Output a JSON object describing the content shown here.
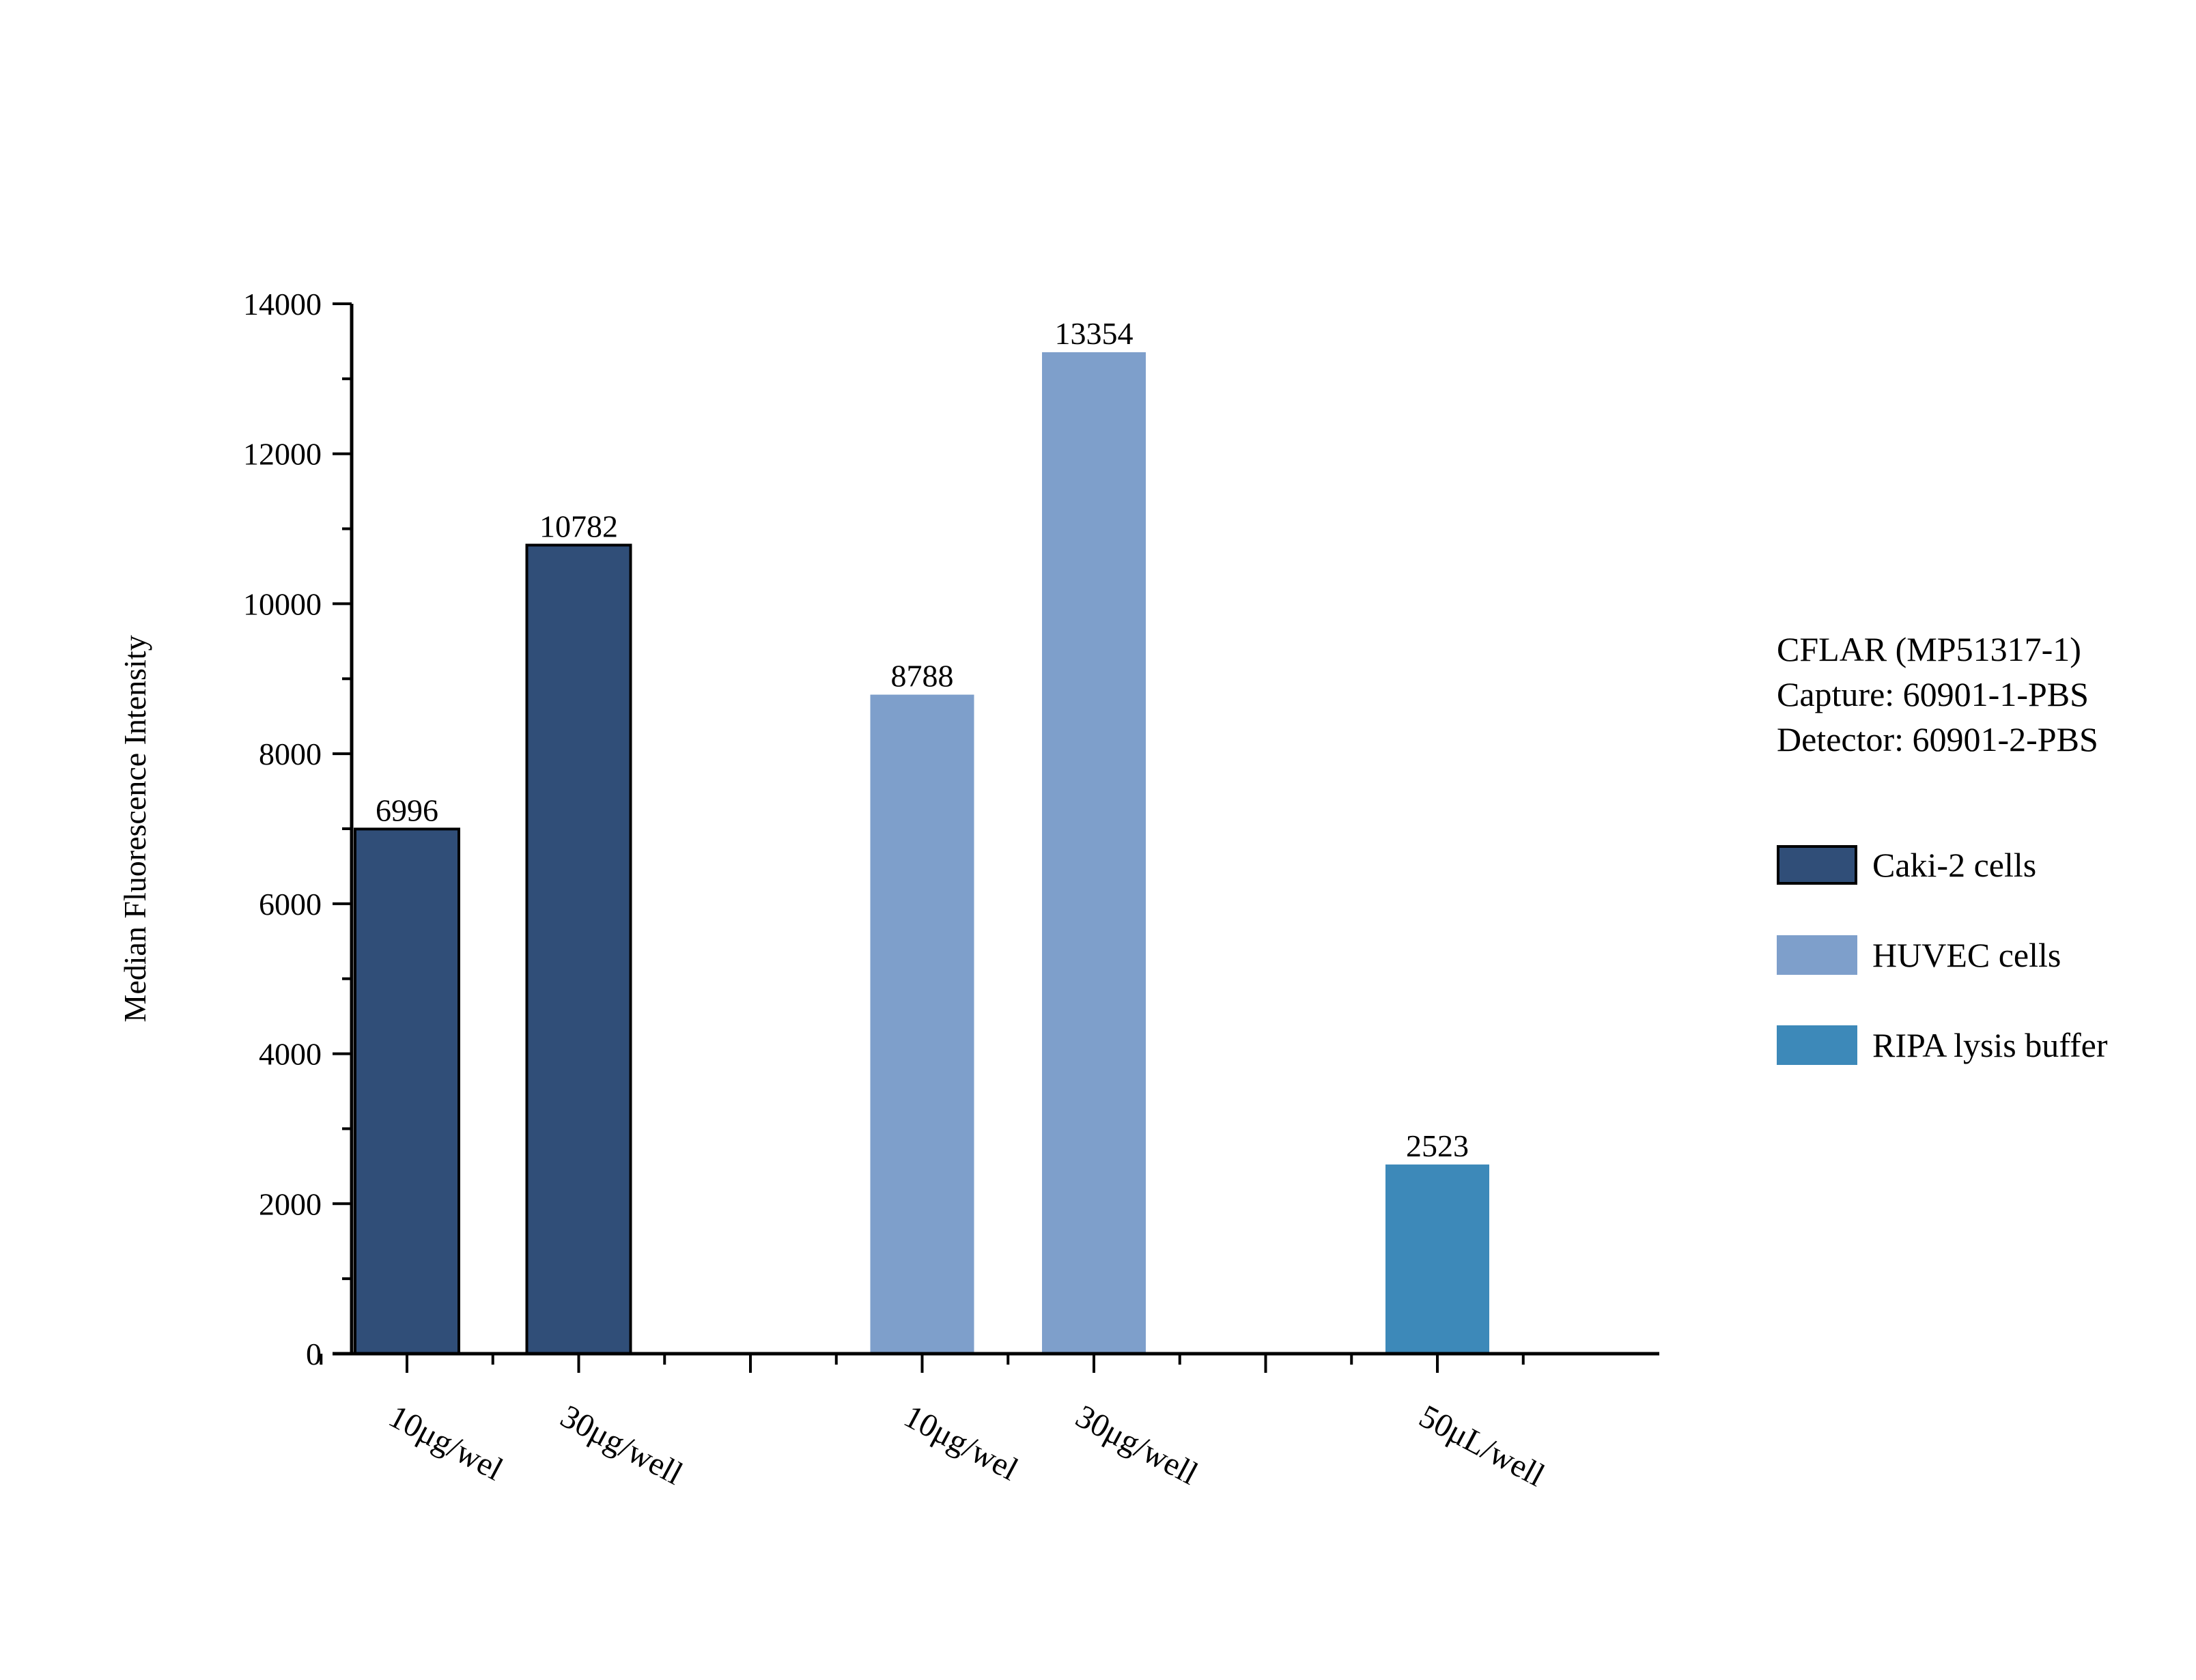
{
  "chart_data": {
    "type": "bar",
    "ylabel": "Median Fluorescence Intensity",
    "xlabel": "",
    "ylim": [
      0,
      14000
    ],
    "yticks": [
      0,
      2000,
      4000,
      6000,
      8000,
      10000,
      12000,
      14000
    ],
    "bars": [
      {
        "slot": 1,
        "label": "10μg/wel",
        "value": 6996,
        "series": "Caki-2 cells"
      },
      {
        "slot": 2,
        "label": "30μg/well",
        "value": 10782,
        "series": "Caki-2 cells"
      },
      {
        "slot": 4,
        "label": "10μg/wel",
        "value": 8788,
        "series": "HUVEC cells"
      },
      {
        "slot": 5,
        "label": "30μg/well",
        "value": 13354,
        "series": "HUVEC cells"
      },
      {
        "slot": 7,
        "label": "50μL/well",
        "value": 2523,
        "series": "RIPA lysis buffer"
      }
    ],
    "series": [
      {
        "name": "Caki-2 cells",
        "color": "#304e78",
        "outlined": true
      },
      {
        "name": "HUVEC cells",
        "color": "#7e9fcb",
        "outlined": false
      },
      {
        "name": "RIPA lysis buffer",
        "color": "#3d89b9",
        "outlined": false
      }
    ],
    "legend_position": "right"
  },
  "info": {
    "line1": "CFLAR (MP51317-1)",
    "line2": "Capture: 60901-1-PBS",
    "line3": "Detector: 60901-2-PBS"
  }
}
